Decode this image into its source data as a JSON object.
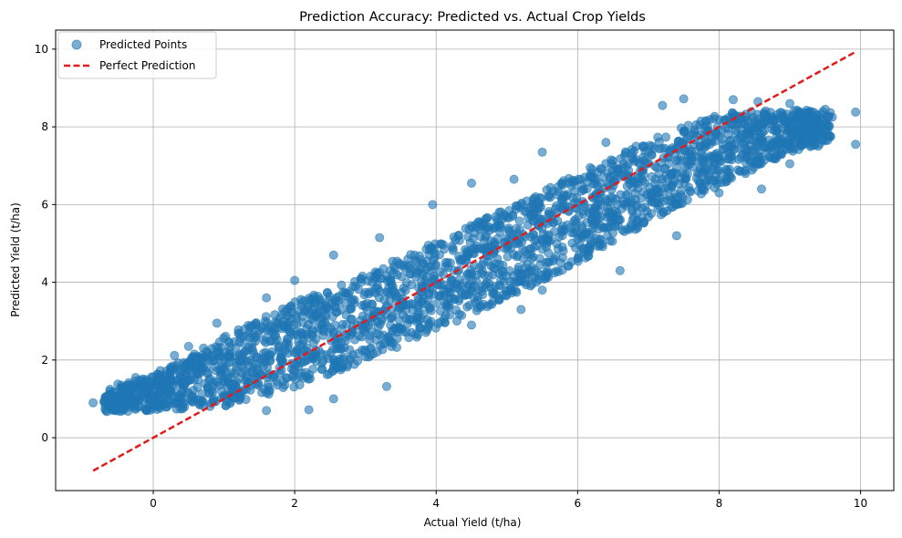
{
  "chart_data": {
    "type": "scatter",
    "title": "Prediction Accuracy: Predicted vs. Actual Crop Yields",
    "xlabel": "Actual Yield (t/ha)",
    "ylabel": "Predicted Yield (t/ha)",
    "xlim": [
      -1.38,
      10.47
    ],
    "ylim": [
      -1.36,
      10.49
    ],
    "xticks": [
      0,
      2,
      4,
      6,
      8,
      10
    ],
    "yticks": [
      0,
      2,
      4,
      6,
      8,
      10
    ],
    "grid": true,
    "legend_position": "top-left",
    "series": [
      {
        "name": "Predicted Points",
        "kind": "scatter",
        "color": "#1f77b4",
        "alpha": 0.6,
        "band": {
          "x_range": [
            -0.85,
            9.93
          ],
          "center_line": [
            [
              -0.85,
              0.9
            ],
            [
              0,
              1.15
            ],
            [
              1,
              1.7
            ],
            [
              2,
              2.4
            ],
            [
              3,
              3.1
            ],
            [
              4,
              3.9
            ],
            [
              5,
              4.75
            ],
            [
              6,
              5.65
            ],
            [
              7,
              6.6
            ],
            [
              8,
              7.4
            ],
            [
              9,
              7.9
            ],
            [
              9.93,
              8.1
            ]
          ],
          "half_width": [
            [
              -0.85,
              0.25
            ],
            [
              0,
              0.45
            ],
            [
              1,
              0.9
            ],
            [
              2,
              1.1
            ],
            [
              4,
              1.15
            ],
            [
              6,
              1.15
            ],
            [
              8,
              0.95
            ],
            [
              9,
              0.55
            ],
            [
              9.93,
              0.3
            ]
          ]
        },
        "points": [
          [
            -0.85,
            0.9
          ],
          [
            9.93,
            8.38
          ],
          [
            9.93,
            7.55
          ],
          [
            -0.6,
            1.1
          ],
          [
            -0.5,
            1.38
          ],
          [
            -0.25,
            1.55
          ],
          [
            0.1,
            1.73
          ],
          [
            0.3,
            2.12
          ],
          [
            0.5,
            2.35
          ],
          [
            0.9,
            2.95
          ],
          [
            1.6,
            3.6
          ],
          [
            2.0,
            4.05
          ],
          [
            2.55,
            4.7
          ],
          [
            3.2,
            5.15
          ],
          [
            3.95,
            6.0
          ],
          [
            4.5,
            6.55
          ],
          [
            5.1,
            6.65
          ],
          [
            5.5,
            7.35
          ],
          [
            6.4,
            7.6
          ],
          [
            7.2,
            8.55
          ],
          [
            7.5,
            8.72
          ],
          [
            8.2,
            8.7
          ],
          [
            8.55,
            8.65
          ],
          [
            9.0,
            8.6
          ],
          [
            9.5,
            8.45
          ],
          [
            9.6,
            8.25
          ],
          [
            2.55,
            1.0
          ],
          [
            2.2,
            0.72
          ],
          [
            1.6,
            0.7
          ],
          [
            3.3,
            1.32
          ],
          [
            4.5,
            2.9
          ],
          [
            5.2,
            3.3
          ],
          [
            5.5,
            3.8
          ],
          [
            6.6,
            4.3
          ],
          [
            7.4,
            5.2
          ],
          [
            8.0,
            6.3
          ],
          [
            8.6,
            6.4
          ],
          [
            9.0,
            7.05
          ],
          [
            9.4,
            7.5
          ]
        ]
      },
      {
        "name": "Perfect Prediction",
        "kind": "line",
        "color": "#e31a1c",
        "dashed": true,
        "x": [
          -0.85,
          9.93
        ],
        "y": [
          -0.85,
          9.93
        ]
      }
    ]
  }
}
